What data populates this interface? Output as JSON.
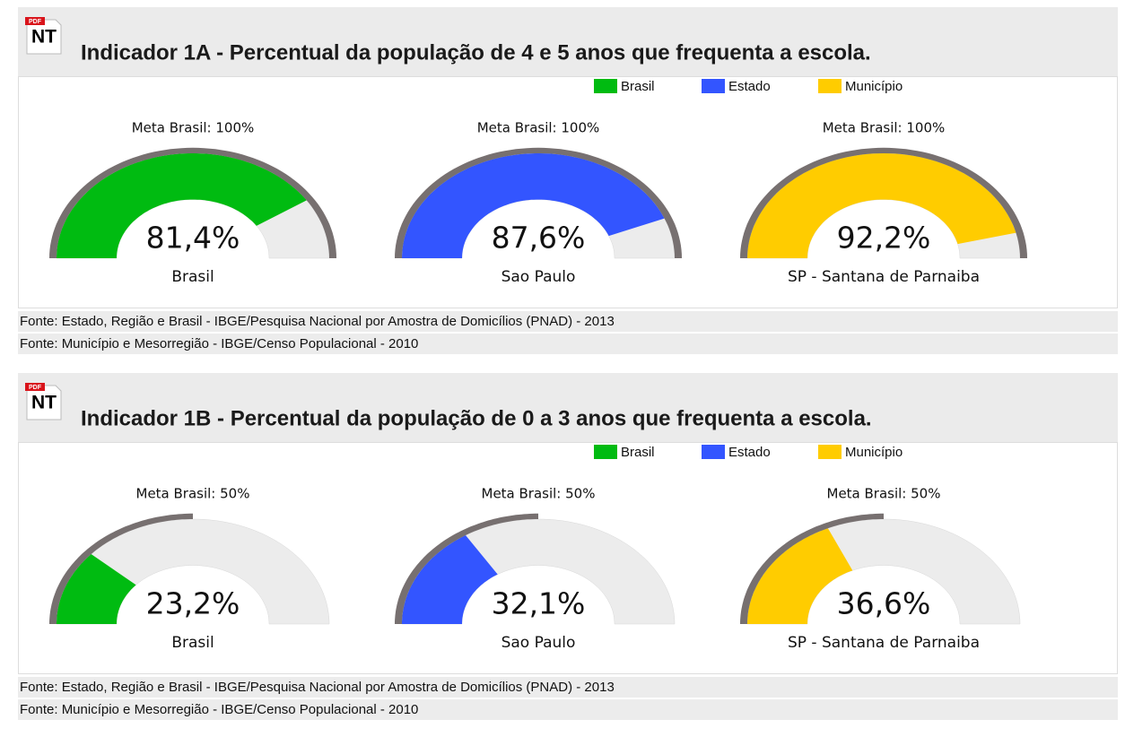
{
  "panels": [
    {
      "icon": {
        "tag": "PDF",
        "text": "NT"
      },
      "title": "Indicador 1A - Percentual da população de 4 e 5 anos que frequenta a escola.",
      "legend": [
        {
          "name": "Brasil",
          "color": "#00bb11"
        },
        {
          "name": "Estado",
          "color": "#3355ff"
        },
        {
          "name": "Município",
          "color": "#ffcc00"
        }
      ],
      "vlim": [
        0,
        100
      ],
      "gauges": [
        {
          "meta_label": "Meta Brasil: 100%",
          "meta": 100,
          "value": 81.4,
          "value_label": "81,4%",
          "name": "Brasil"
        },
        {
          "meta_label": "Meta Brasil: 100%",
          "meta": 100,
          "value": 87.6,
          "value_label": "87,6%",
          "name": "Sao Paulo"
        },
        {
          "meta_label": "Meta Brasil: 100%",
          "meta": 100,
          "value": 92.2,
          "value_label": "92,2%",
          "name": "SP - Santana de Parnaiba"
        }
      ],
      "sources": [
        "Fonte: Estado, Região e Brasil - IBGE/Pesquisa Nacional por Amostra de Domicílios (PNAD) - 2013",
        "Fonte: Município e Mesorregião - IBGE/Censo Populacional - 2010"
      ]
    },
    {
      "icon": {
        "tag": "PDF",
        "text": "NT"
      },
      "title": "Indicador 1B - Percentual da população de 0 a 3 anos que frequenta a escola.",
      "legend": [
        {
          "name": "Brasil",
          "color": "#00bb11"
        },
        {
          "name": "Estado",
          "color": "#3355ff"
        },
        {
          "name": "Município",
          "color": "#ffcc00"
        }
      ],
      "vlim": [
        0,
        100
      ],
      "gauges": [
        {
          "meta_label": "Meta Brasil: 50%",
          "meta": 50,
          "value": 23.2,
          "value_label": "23,2%",
          "name": "Brasil"
        },
        {
          "meta_label": "Meta Brasil: 50%",
          "meta": 50,
          "value": 32.1,
          "value_label": "32,1%",
          "name": "Sao Paulo"
        },
        {
          "meta_label": "Meta Brasil: 50%",
          "meta": 50,
          "value": 36.6,
          "value_label": "36,6%",
          "name": "SP - Santana de Parnaiba"
        }
      ],
      "sources": [
        "Fonte: Estado, Região e Brasil - IBGE/Pesquisa Nacional por Amostra de Domicílios (PNAD) - 2013",
        "Fonte: Município e Mesorregião - IBGE/Censo Populacional - 2010"
      ]
    }
  ]
}
